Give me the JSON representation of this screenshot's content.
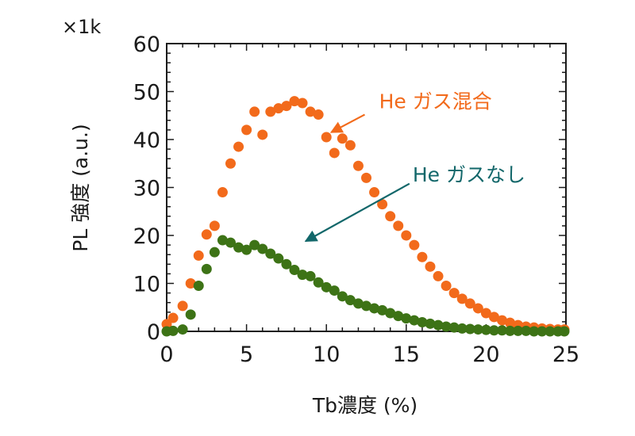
{
  "chart_data": {
    "type": "scatter",
    "xlabel": "Tb濃度 (%)",
    "ylabel": "PL 強度 (a.u.)",
    "y_multiplier_label": "×1k",
    "xlim": [
      0,
      25
    ],
    "ylim": [
      0,
      60
    ],
    "x_ticks": [
      "0",
      "5",
      "10",
      "15",
      "20",
      "25"
    ],
    "y_ticks": [
      "0",
      "10",
      "20",
      "30",
      "40",
      "50",
      "60"
    ],
    "grid": false,
    "series": [
      {
        "name": "He ガス混合",
        "color": "#f26a1b",
        "x": [
          0.0,
          0.4,
          1.0,
          1.5,
          2.0,
          2.5,
          3.0,
          3.5,
          4.0,
          4.5,
          5.0,
          5.5,
          6.0,
          6.5,
          7.0,
          7.5,
          8.0,
          8.5,
          9.0,
          9.5,
          10.0,
          10.5,
          11.0,
          11.5,
          12.0,
          12.5,
          13.0,
          13.5,
          14.0,
          14.5,
          15.0,
          15.5,
          16.0,
          16.5,
          17.0,
          17.5,
          18.0,
          18.5,
          19.0,
          19.5,
          20.0,
          20.5,
          21.0,
          21.5,
          22.0,
          22.5,
          23.0,
          23.5,
          24.0,
          24.5,
          24.9
        ],
        "y": [
          1.5,
          2.8,
          5.3,
          10.0,
          15.8,
          20.2,
          22.0,
          29.0,
          35.0,
          38.5,
          42.0,
          45.8,
          41.0,
          45.8,
          46.5,
          47.0,
          48.0,
          47.6,
          45.8,
          45.2,
          40.5,
          37.2,
          40.2,
          38.8,
          34.5,
          32.0,
          29.0,
          26.5,
          24.0,
          22.0,
          20.0,
          18.0,
          15.5,
          13.5,
          11.5,
          9.5,
          8.0,
          6.8,
          5.8,
          4.8,
          3.8,
          3.0,
          2.3,
          1.8,
          1.3,
          1.0,
          0.8,
          0.6,
          0.5,
          0.4,
          0.4
        ]
      },
      {
        "name": "He ガスなし",
        "color": "#3d7316",
        "x": [
          0.0,
          0.4,
          1.0,
          1.5,
          2.0,
          2.5,
          3.0,
          3.5,
          4.0,
          4.5,
          5.0,
          5.5,
          6.0,
          6.5,
          7.0,
          7.5,
          8.0,
          8.5,
          9.0,
          9.5,
          10.0,
          10.5,
          11.0,
          11.5,
          12.0,
          12.5,
          13.0,
          13.5,
          14.0,
          14.5,
          15.0,
          15.5,
          16.0,
          16.5,
          17.0,
          17.5,
          18.0,
          18.5,
          19.0,
          19.5,
          20.0,
          20.5,
          21.0,
          21.5,
          22.0,
          22.5,
          23.0,
          23.5,
          24.0,
          24.5,
          24.9
        ],
        "y": [
          0.0,
          0.1,
          0.4,
          3.5,
          9.5,
          13.0,
          16.5,
          19.0,
          18.5,
          17.5,
          17.0,
          18.0,
          17.2,
          16.2,
          15.2,
          14.0,
          12.8,
          11.8,
          11.5,
          10.2,
          9.2,
          8.5,
          7.3,
          6.5,
          5.8,
          5.3,
          4.8,
          4.4,
          3.8,
          3.2,
          2.7,
          2.3,
          1.9,
          1.6,
          1.3,
          1.0,
          0.8,
          0.6,
          0.5,
          0.4,
          0.3,
          0.2,
          0.2,
          0.1,
          0.1,
          0.1,
          0.0,
          0.0,
          0.0,
          0.0,
          0.0
        ]
      }
    ],
    "annotations": [
      {
        "text": "He ガス混合",
        "color": "#f26a1b",
        "arrow_from": [
          12.4,
          45.2
        ],
        "arrow_to": [
          10.3,
          41.5
        ],
        "text_at": [
          13.3,
          48.0
        ]
      },
      {
        "text": "He ガスなし",
        "color": "#12676a",
        "arrow_from": [
          15.2,
          30.8
        ],
        "arrow_to": [
          8.7,
          18.8
        ],
        "text_at": [
          15.4,
          32.7
        ]
      }
    ]
  }
}
